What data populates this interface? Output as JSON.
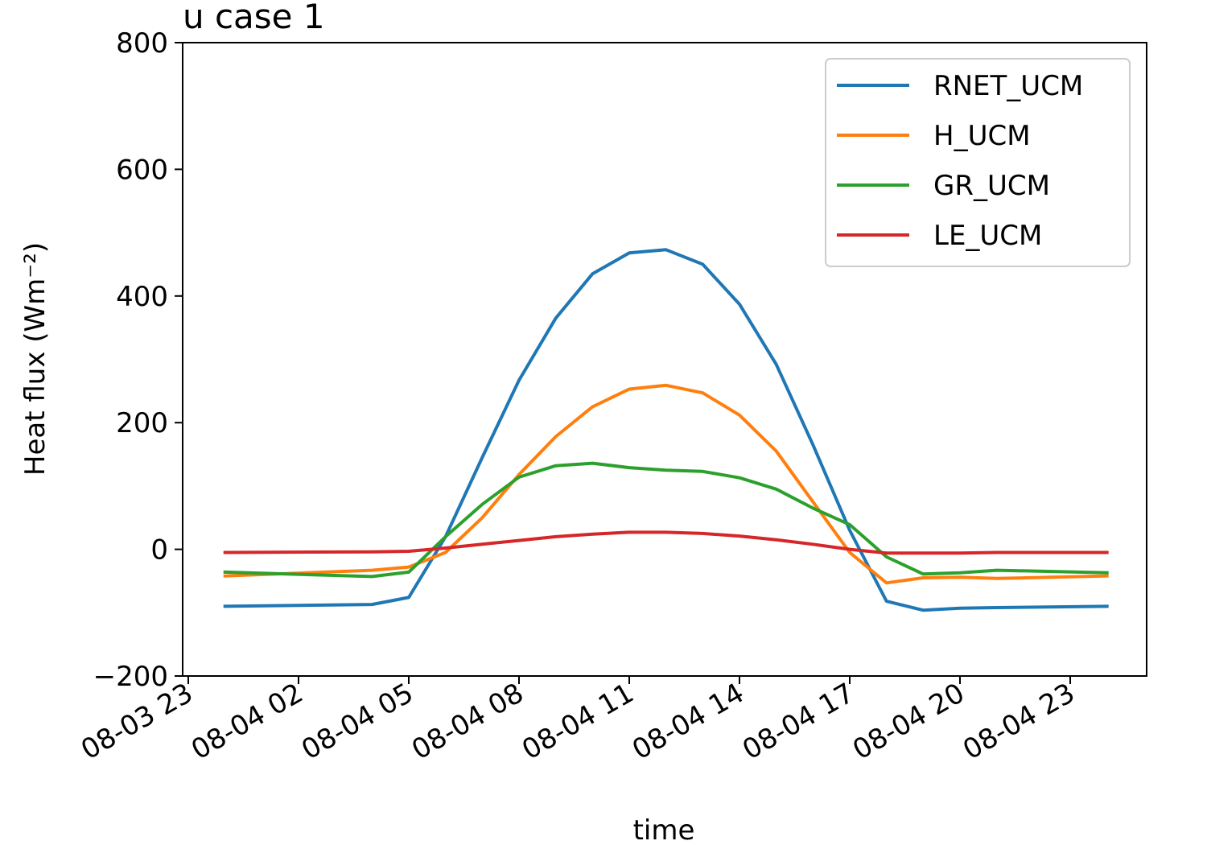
{
  "chart_data": {
    "type": "line",
    "title": "u case 1",
    "xlabel": "time",
    "ylabel": "Heat flux (Wm⁻²)",
    "ylim": [
      -200,
      800
    ],
    "yticks": [
      -200,
      0,
      200,
      400,
      600,
      800
    ],
    "xlim": [
      "2023-08-03 23:00",
      "2023-08-05 00:30"
    ],
    "xticks": [
      "08-03 23",
      "08-04 02",
      "08-04 05",
      "08-04 08",
      "08-04 11",
      "08-04 14",
      "08-04 17",
      "08-04 20",
      "08-04 23"
    ],
    "legend": "top-right",
    "grid": false,
    "x": [
      "08-04 00",
      "08-04 04",
      "08-04 05",
      "08-04 06",
      "08-04 07",
      "08-04 08",
      "08-04 09",
      "08-04 10",
      "08-04 11",
      "08-04 12",
      "08-04 13",
      "08-04 14",
      "08-04 15",
      "08-04 16",
      "08-04 17",
      "08-04 18",
      "08-04 19",
      "08-04 20",
      "08-04 21",
      "08-05 00"
    ],
    "series": [
      {
        "name": "RNET_UCM",
        "color": "#1f77b4",
        "values": [
          -90,
          -87,
          -76,
          20,
          145,
          267,
          365,
          435,
          468,
          473,
          450,
          387,
          292,
          165,
          30,
          -82,
          -96,
          -93,
          -92,
          -90
        ]
      },
      {
        "name": "H_UCM",
        "color": "#ff7f0e",
        "values": [
          -42,
          -33,
          -28,
          -5,
          50,
          118,
          178,
          225,
          253,
          259,
          247,
          212,
          155,
          75,
          -5,
          -53,
          -45,
          -44,
          -46,
          -42
        ]
      },
      {
        "name": "GR_UCM",
        "color": "#2ca02c",
        "values": [
          -36,
          -43,
          -36,
          20,
          71,
          114,
          132,
          136,
          129,
          125,
          123,
          113,
          95,
          65,
          39,
          -12,
          -39,
          -37,
          -33,
          -37
        ]
      },
      {
        "name": "LE_UCM",
        "color": "#d62728",
        "values": [
          -5,
          -4,
          -3,
          2,
          8,
          14,
          20,
          24,
          27,
          27,
          25,
          21,
          15,
          8,
          0,
          -6,
          -6,
          -6,
          -5,
          -5
        ]
      }
    ]
  }
}
